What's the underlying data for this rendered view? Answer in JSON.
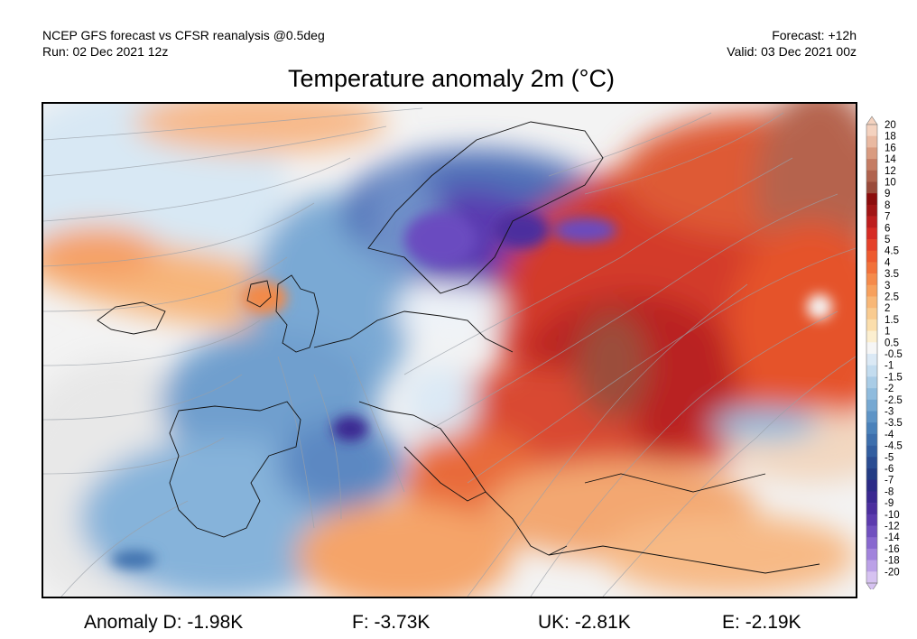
{
  "header": {
    "left_line1": "NCEP GFS forecast vs CFSR reanalysis @0.5deg",
    "left_line2": "Run: 02 Dec 2021 12z",
    "right_line1": "Forecast: +12h",
    "right_line2": "Valid: 03 Dec 2021 00z"
  },
  "title": "Temperature anomaly 2m (°C)",
  "colorbar": {
    "labels": [
      "20",
      "18",
      "16",
      "14",
      "12",
      "10",
      "9",
      "8",
      "7",
      "6",
      "5",
      "4.5",
      "4",
      "3.5",
      "3",
      "2.5",
      "2",
      "1.5",
      "1",
      "0.5",
      "-0.5",
      "-1",
      "-1.5",
      "-2",
      "-2.5",
      "-3",
      "-3.5",
      "-4",
      "-4.5",
      "-5",
      "-6",
      "-7",
      "-8",
      "-9",
      "-10",
      "-12",
      "-14",
      "-16",
      "-18",
      "-20"
    ],
    "colors": [
      "#f4d2bf",
      "#e9b9a1",
      "#d99b80",
      "#c57c63",
      "#b0624d",
      "#9a4a3a",
      "#8b0c0c",
      "#a11414",
      "#bd1d1d",
      "#d62b24",
      "#e5412a",
      "#ee5a2f",
      "#f2713a",
      "#f58a4b",
      "#f7a05d",
      "#f8b777",
      "#f9cb90",
      "#fbdeac",
      "#fcefd0",
      "#f6f6f6",
      "#dbe9f5",
      "#c3dcef",
      "#a9cce6",
      "#8fbbdd",
      "#76a8d2",
      "#5e94c6",
      "#4a81ba",
      "#3d6fad",
      "#325ea0",
      "#2a4c92",
      "#233c84",
      "#2b2a86",
      "#3a2891",
      "#4b2e9e",
      "#5c3bae",
      "#7050bf",
      "#8868cf",
      "#a183dc",
      "#bba1e7",
      "#d6c2f1"
    ]
  },
  "footer": [
    {
      "label": "Anomaly D:",
      "value": "-1.98K"
    },
    {
      "label": "F:",
      "value": "-3.73K"
    },
    {
      "label": "UK:",
      "value": "-2.81K"
    },
    {
      "label": "E:",
      "value": "-2.19K"
    }
  ]
}
